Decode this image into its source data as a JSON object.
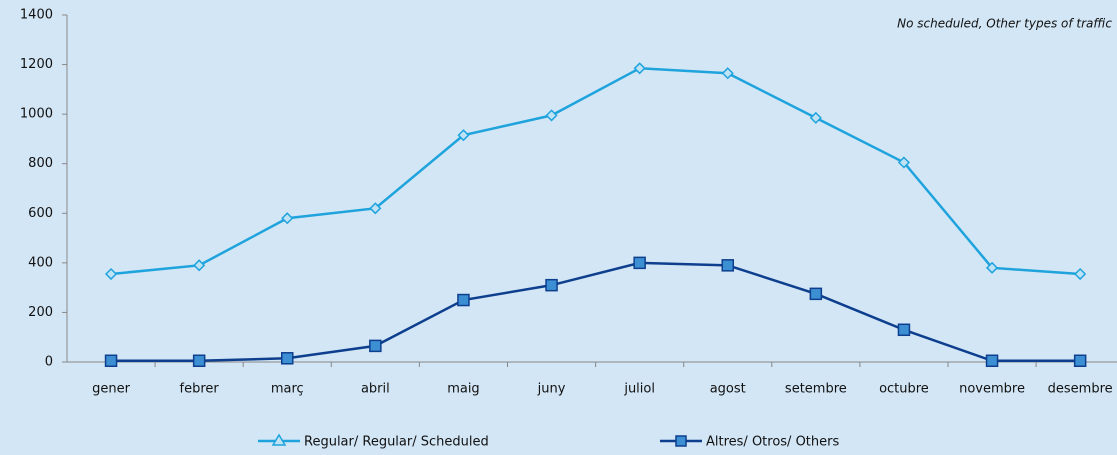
{
  "chart_data": {
    "type": "line",
    "note": "No scheduled, Other types of traffic",
    "categories": [
      "gener",
      "febrer",
      "març",
      "abril",
      "maig",
      "juny",
      "juliol",
      "agost",
      "setembre",
      "octubre",
      "novembre",
      "desembre"
    ],
    "series": [
      {
        "name": "Regular/ Regular/ Scheduled",
        "color": "#1fa3dd",
        "values": [
          355,
          390,
          580,
          620,
          915,
          995,
          1185,
          1165,
          985,
          805,
          380,
          355
        ]
      },
      {
        "name": "Altres/ Otros/ Others",
        "color": "#0d3f8e",
        "values": [
          5,
          5,
          15,
          65,
          250,
          310,
          400,
          390,
          275,
          130,
          5,
          5
        ]
      }
    ],
    "ylim": [
      0,
      1400
    ],
    "yticks": [
      0,
      200,
      400,
      600,
      800,
      1000,
      1200,
      1400
    ]
  }
}
